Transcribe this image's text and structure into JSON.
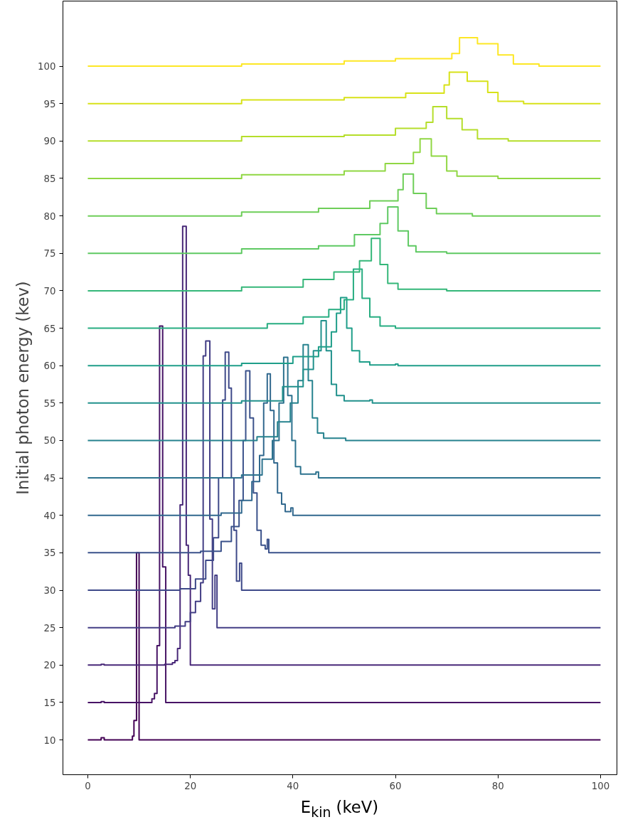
{
  "chart_data": {
    "type": "step",
    "xlabel": "E$_{kin}$ (keV)",
    "ylabel": "Initial photon energy (kev)",
    "xlim": [
      -4.85,
      103.2
    ],
    "ylim": [
      5.35,
      108.7
    ],
    "xticks": [
      0,
      20,
      40,
      60,
      80,
      100
    ],
    "yticks": [
      10,
      15,
      20,
      25,
      30,
      35,
      40,
      45,
      50,
      55,
      60,
      65,
      70,
      75,
      80,
      85,
      90,
      95,
      100
    ],
    "grid": false,
    "series": [
      {
        "color": "#440154",
        "x": [
          0,
          2.6,
          3.2,
          8.7,
          9.0,
          9.5,
          10,
          100
        ],
        "values": [
          10,
          10.3,
          10,
          10.5,
          12.6,
          35,
          10,
          10
        ]
      },
      {
        "color": "#471365",
        "x": [
          0,
          2.6,
          3.2,
          12.5,
          13,
          13.5,
          14,
          14.6,
          15.2,
          100
        ],
        "values": [
          15,
          15.1,
          15,
          15.5,
          16.2,
          22.6,
          65.3,
          33.1,
          15,
          15
        ]
      },
      {
        "color": "#482878",
        "x": [
          0,
          2.6,
          3.2,
          15,
          16.5,
          17,
          17.5,
          18,
          18.5,
          19.2,
          19.6,
          20,
          100
        ],
        "values": [
          20,
          20.1,
          20,
          20.1,
          20.3,
          20.6,
          22.2,
          41.4,
          78.6,
          36,
          32,
          20,
          20
        ]
      },
      {
        "color": "#433e85",
        "x": [
          0,
          17,
          19,
          20,
          21,
          22,
          22.5,
          23,
          23.8,
          24.3,
          24.8,
          25.2,
          100
        ],
        "values": [
          25,
          25.2,
          25.8,
          27,
          28.5,
          31,
          61.3,
          63.3,
          39.5,
          27.5,
          32,
          25,
          25
        ]
      },
      {
        "color": "#3e4989",
        "x": [
          0,
          18,
          21,
          23,
          24.5,
          25.5,
          26.3,
          26.8,
          27.5,
          28,
          28.5,
          29,
          29.6,
          30,
          100
        ],
        "values": [
          30,
          30.2,
          31.5,
          34,
          37,
          45,
          55.4,
          61.8,
          57,
          45,
          38,
          31.2,
          33.6,
          30,
          30
        ]
      },
      {
        "color": "#3b528b",
        "x": [
          0,
          22,
          26,
          28,
          29.5,
          30.3,
          30.8,
          31.6,
          32.3,
          33,
          33.8,
          34.6,
          35,
          35.3,
          100
        ],
        "values": [
          35,
          35.2,
          36.5,
          38.5,
          42,
          50,
          59.3,
          53,
          43,
          38,
          36,
          35.5,
          36.8,
          35,
          35
        ]
      },
      {
        "color": "#31688e",
        "x": [
          0,
          26,
          30,
          32,
          33.5,
          34.3,
          35,
          35.6,
          36.3,
          37,
          37.8,
          38.5,
          39.6,
          40,
          100
        ],
        "values": [
          40,
          40.3,
          42,
          44.5,
          48,
          55,
          58.9,
          54,
          47,
          43,
          41.5,
          40.5,
          41,
          40,
          40
        ]
      },
      {
        "color": "#2c728e",
        "x": [
          0,
          30,
          34,
          36,
          37.3,
          38.2,
          39,
          39.8,
          40.5,
          41.5,
          44.5,
          45,
          100
        ],
        "values": [
          45,
          45.4,
          47.5,
          50,
          55,
          61.1,
          56,
          50,
          46.5,
          45.5,
          45.8,
          45,
          45
        ]
      },
      {
        "color": "#26828e",
        "x": [
          0,
          33,
          37,
          39.5,
          41,
          42,
          43,
          43.8,
          44.8,
          46,
          49.8,
          50.3,
          100
        ],
        "values": [
          50,
          50.5,
          52.5,
          55,
          58,
          62.8,
          58,
          53,
          51,
          50.3,
          50.3,
          50,
          50
        ]
      },
      {
        "color": "#21918c",
        "x": [
          0,
          30,
          38,
          42,
          44,
          45.5,
          46.5,
          47.5,
          48.5,
          50,
          55,
          55.5,
          100
        ],
        "values": [
          55,
          55.3,
          57.2,
          59.5,
          62,
          66,
          62,
          57.5,
          56,
          55.3,
          55.4,
          55,
          55
        ]
      },
      {
        "color": "#1f9e89",
        "x": [
          0,
          30,
          40,
          45,
          47.5,
          48.5,
          49.3,
          50.5,
          51.5,
          53,
          55,
          60,
          60.5,
          100
        ],
        "values": [
          60,
          60.3,
          61.2,
          62.5,
          64.5,
          67,
          69.1,
          65,
          62,
          60.5,
          60.1,
          60.2,
          60,
          60
        ]
      },
      {
        "color": "#27ad81",
        "x": [
          0,
          35,
          42,
          47,
          50,
          51.8,
          53.5,
          55,
          57,
          60,
          100
        ],
        "values": [
          65,
          65.6,
          66.5,
          67.5,
          68.8,
          72.9,
          69,
          66.5,
          65.3,
          65,
          65
        ]
      },
      {
        "color": "#35b779",
        "x": [
          0,
          30,
          42,
          48,
          53,
          55.3,
          57,
          58.5,
          60.5,
          70,
          100
        ],
        "values": [
          70,
          70.5,
          71.5,
          72.5,
          74,
          77,
          73.5,
          71,
          70.2,
          70,
          70
        ]
      },
      {
        "color": "#5ec962",
        "x": [
          0,
          30,
          45,
          52,
          57,
          58.5,
          60.5,
          62.5,
          64,
          70,
          100
        ],
        "values": [
          75,
          75.6,
          76,
          77.5,
          79,
          81.2,
          78,
          76,
          75.2,
          75,
          75
        ]
      },
      {
        "color": "#6ece58",
        "x": [
          0,
          30,
          45,
          55,
          60.5,
          61.5,
          63.5,
          66,
          68,
          75,
          100
        ],
        "values": [
          80,
          80.5,
          81,
          82,
          83.5,
          85.6,
          83,
          81,
          80.3,
          80,
          80
        ]
      },
      {
        "color": "#90d743",
        "x": [
          0,
          30,
          50,
          58,
          63.5,
          64.8,
          67,
          70,
          72,
          80,
          100
        ],
        "values": [
          85,
          85.5,
          86,
          87,
          88.5,
          90.3,
          88,
          86,
          85.3,
          85,
          85
        ]
      },
      {
        "color": "#b5de2b",
        "x": [
          0,
          30,
          50,
          60,
          66,
          67.3,
          70,
          73,
          76,
          82,
          100
        ],
        "values": [
          90,
          90.6,
          90.8,
          91.7,
          92.5,
          94.6,
          93,
          91.5,
          90.3,
          90,
          90
        ]
      },
      {
        "color": "#d8e219",
        "x": [
          0,
          30,
          50,
          62,
          69.5,
          70.5,
          74,
          78,
          80,
          85,
          100
        ],
        "values": [
          95,
          95.5,
          95.8,
          96.4,
          97.5,
          99.2,
          98,
          96.5,
          95.3,
          95,
          95
        ]
      },
      {
        "color": "#fde725",
        "x": [
          0,
          30,
          50,
          60,
          71,
          72.5,
          76,
          80,
          83,
          88,
          100
        ],
        "values": [
          100,
          100.3,
          100.7,
          101,
          101.7,
          103.8,
          103,
          101.5,
          100.3,
          100,
          100
        ]
      }
    ]
  }
}
